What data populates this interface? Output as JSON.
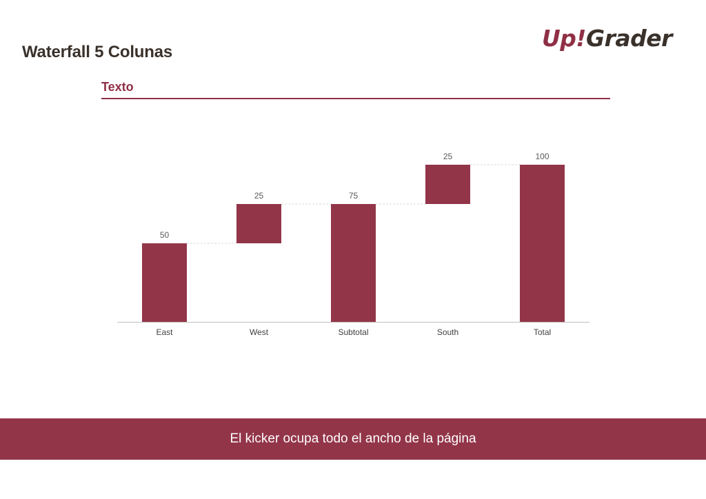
{
  "header": {
    "title": "Waterfall 5 Colunas",
    "logo_text": "Up!Grader",
    "subtitle": "Texto"
  },
  "footer": {
    "kicker": "El kicker ocupa todo el ancho de la página"
  },
  "colors": {
    "accent": "#933549",
    "title": "#3a312b",
    "axis": "#bfbfbf",
    "connector": "#d9d9d9"
  },
  "chart_data": {
    "type": "bar",
    "subtype": "waterfall",
    "categories": [
      "East",
      "West",
      "Subtotal",
      "South",
      "Total"
    ],
    "values": [
      50,
      25,
      75,
      25,
      100
    ],
    "bar_start": [
      0,
      50,
      0,
      75,
      0
    ],
    "labels": [
      "50",
      "25",
      "75",
      "25",
      "100"
    ],
    "ylim": [
      0,
      100
    ],
    "grid": false,
    "legend": "none"
  }
}
